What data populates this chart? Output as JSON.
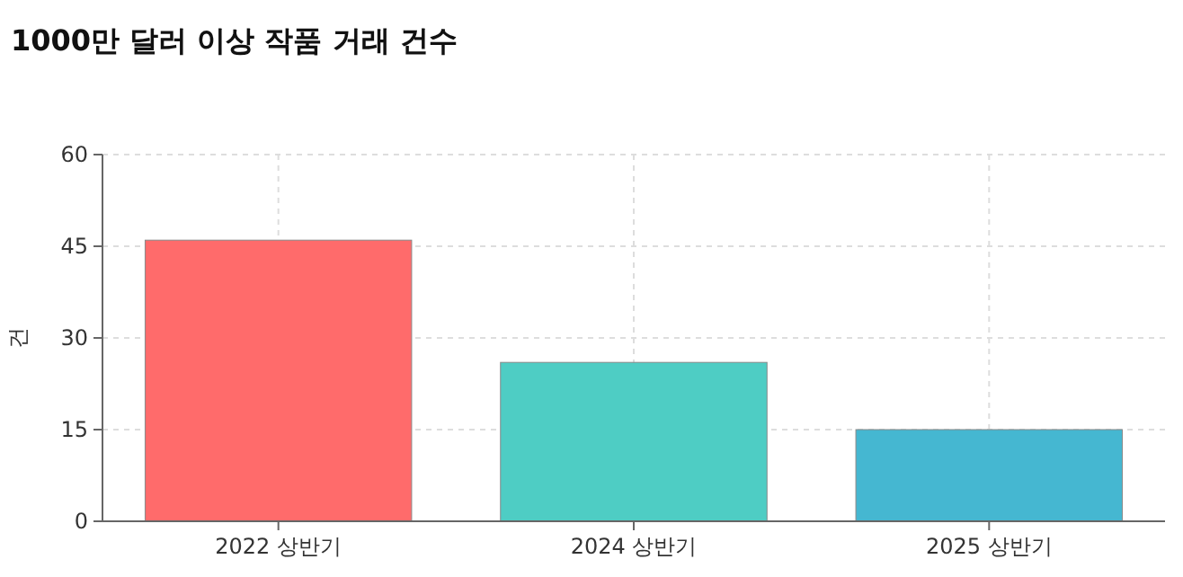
{
  "chart_data": {
    "type": "bar",
    "title": "1000만 달러 이상 작품 거래 건수",
    "ylabel": "건",
    "categories": [
      "2022 상반기",
      "2024 상반기",
      "2025 상반기"
    ],
    "values": [
      46,
      26,
      15
    ],
    "colors": [
      "#ff6b6b",
      "#4ecdc4",
      "#45b7d1"
    ],
    "ylim": [
      0,
      60
    ],
    "yticks": [
      0,
      15,
      30,
      45,
      60
    ],
    "grid": true
  }
}
